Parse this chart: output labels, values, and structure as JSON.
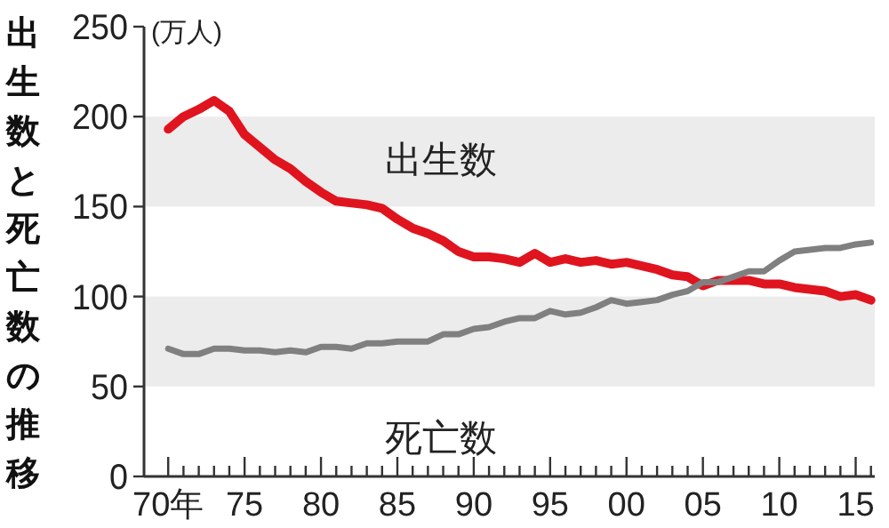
{
  "chart_data": {
    "type": "line",
    "title": "出生数と死亡数の推移",
    "ylabel": "(万人)",
    "x": [
      "1970",
      "1971",
      "1972",
      "1973",
      "1974",
      "1975",
      "1976",
      "1977",
      "1978",
      "1979",
      "1980",
      "1981",
      "1982",
      "1983",
      "1984",
      "1985",
      "1986",
      "1987",
      "1988",
      "1989",
      "1990",
      "1991",
      "1992",
      "1993",
      "1994",
      "1995",
      "1996",
      "1997",
      "1998",
      "1999",
      "2000",
      "2001",
      "2002",
      "2003",
      "2004",
      "2005",
      "2006",
      "2007",
      "2008",
      "2009",
      "2010",
      "2011",
      "2012",
      "2013",
      "2014",
      "2015",
      "2016"
    ],
    "series": [
      {
        "name": "出生数",
        "color": "#e0141e",
        "values": [
          193,
          200,
          204,
          209,
          203,
          190,
          183,
          176,
          171,
          164,
          158,
          153,
          152,
          151,
          149,
          143,
          138,
          135,
          131,
          125,
          122,
          122,
          121,
          119,
          124,
          119,
          121,
          119,
          120,
          118,
          119,
          117,
          115,
          112,
          111,
          106,
          109,
          109,
          109,
          107,
          107,
          105,
          104,
          103,
          100,
          101,
          98
        ]
      },
      {
        "name": "死亡数",
        "color": "#808080",
        "values": [
          71,
          68,
          68,
          71,
          71,
          70,
          70,
          69,
          70,
          69,
          72,
          72,
          71,
          74,
          74,
          75,
          75,
          75,
          79,
          79,
          82,
          83,
          86,
          88,
          88,
          92,
          90,
          91,
          94,
          98,
          96,
          97,
          98,
          101,
          103,
          108,
          108,
          111,
          114,
          114,
          120,
          125,
          126,
          127,
          127,
          129,
          130
        ]
      }
    ],
    "xlim": [
      "1968-06",
      "2016-04"
    ],
    "xticks": [
      {
        "value": "1970",
        "label": "70年"
      },
      {
        "value": "1971",
        "label": null
      },
      {
        "value": "1972",
        "label": null
      },
      {
        "value": "1973",
        "label": null
      },
      {
        "value": "1974",
        "label": null
      },
      {
        "value": "1975",
        "label": "75"
      },
      {
        "value": "1976",
        "label": null
      },
      {
        "value": "1977",
        "label": null
      },
      {
        "value": "1978",
        "label": null
      },
      {
        "value": "1979",
        "label": null
      },
      {
        "value": "1980",
        "label": "80"
      },
      {
        "value": "1981",
        "label": null
      },
      {
        "value": "1982",
        "label": null
      },
      {
        "value": "1983",
        "label": null
      },
      {
        "value": "1984",
        "label": null
      },
      {
        "value": "1985",
        "label": "85"
      },
      {
        "value": "1986",
        "label": null
      },
      {
        "value": "1987",
        "label": null
      },
      {
        "value": "1988",
        "label": null
      },
      {
        "value": "1989",
        "label": null
      },
      {
        "value": "1990",
        "label": "90"
      },
      {
        "value": "1991",
        "label": null
      },
      {
        "value": "1992",
        "label": null
      },
      {
        "value": "1993",
        "label": null
      },
      {
        "value": "1994",
        "label": null
      },
      {
        "value": "1995",
        "label": "95"
      },
      {
        "value": "1996",
        "label": null
      },
      {
        "value": "1997",
        "label": null
      },
      {
        "value": "1998",
        "label": null
      },
      {
        "value": "1999",
        "label": null
      },
      {
        "value": "2000",
        "label": "00"
      },
      {
        "value": "2001",
        "label": null
      },
      {
        "value": "2002",
        "label": null
      },
      {
        "value": "2003",
        "label": null
      },
      {
        "value": "2004",
        "label": null
      },
      {
        "value": "2005",
        "label": "05"
      },
      {
        "value": "2006",
        "label": null
      },
      {
        "value": "2007",
        "label": null
      },
      {
        "value": "2008",
        "label": null
      },
      {
        "value": "2009",
        "label": null
      },
      {
        "value": "2010",
        "label": "10"
      },
      {
        "value": "2011",
        "label": null
      },
      {
        "value": "2012",
        "label": null
      },
      {
        "value": "2013",
        "label": null
      },
      {
        "value": "2014",
        "label": null
      },
      {
        "value": "2015",
        "label": "15"
      },
      {
        "value": "2016",
        "label": null
      }
    ],
    "ylim": [
      0,
      250
    ],
    "yticks": [
      0,
      50,
      100,
      150,
      200,
      250
    ],
    "bands": [
      {
        "axis": "y",
        "from": 50,
        "to": 100,
        "color": "#ececec"
      },
      {
        "axis": "y",
        "from": 150,
        "to": 200,
        "color": "#ececec"
      }
    ],
    "grid": false,
    "legend": false,
    "marker": "none",
    "line_style": "solid"
  }
}
